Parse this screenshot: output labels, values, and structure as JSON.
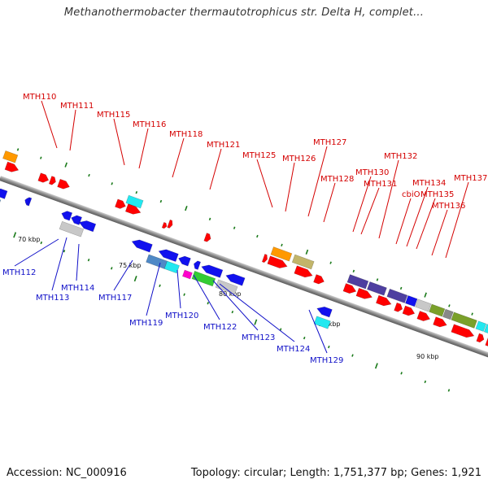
{
  "title": "Methanothermobacter thermautotrophicus str. Delta H, complet...",
  "footer": {
    "accession": "Accession: NC_000916",
    "summary": "Topology: circular; Length: 1,751,377 bp; Genes: 1,921"
  },
  "colors": {
    "forward_label": "#d40000",
    "reverse_label": "#1010c8",
    "forward_gene": "#ff0000",
    "reverse_gene": "#1111ee",
    "backbone": "#8a8a8a",
    "tick": "#1a7a1a"
  },
  "scale_labels": [
    "70 kbp",
    "75 kbp",
    "80 kbp",
    "85 kbp",
    "90 kbp"
  ],
  "forward_labels": [
    "MTH110",
    "MTH111",
    "MTH115",
    "MTH116",
    "MTH118",
    "MTH121",
    "MTH125",
    "MTH126",
    "MTH127",
    "MTH128",
    "MTH130",
    "MTH131",
    "MTH132",
    "cbiO",
    "MTH134",
    "MTH135",
    "MTH136",
    "MTH137"
  ],
  "reverse_labels": [
    "MTH112",
    "MTH113",
    "MTH114",
    "MTH117",
    "MTH119",
    "MTH120",
    "MTH122",
    "MTH123",
    "MTH124",
    "MTH129"
  ]
}
